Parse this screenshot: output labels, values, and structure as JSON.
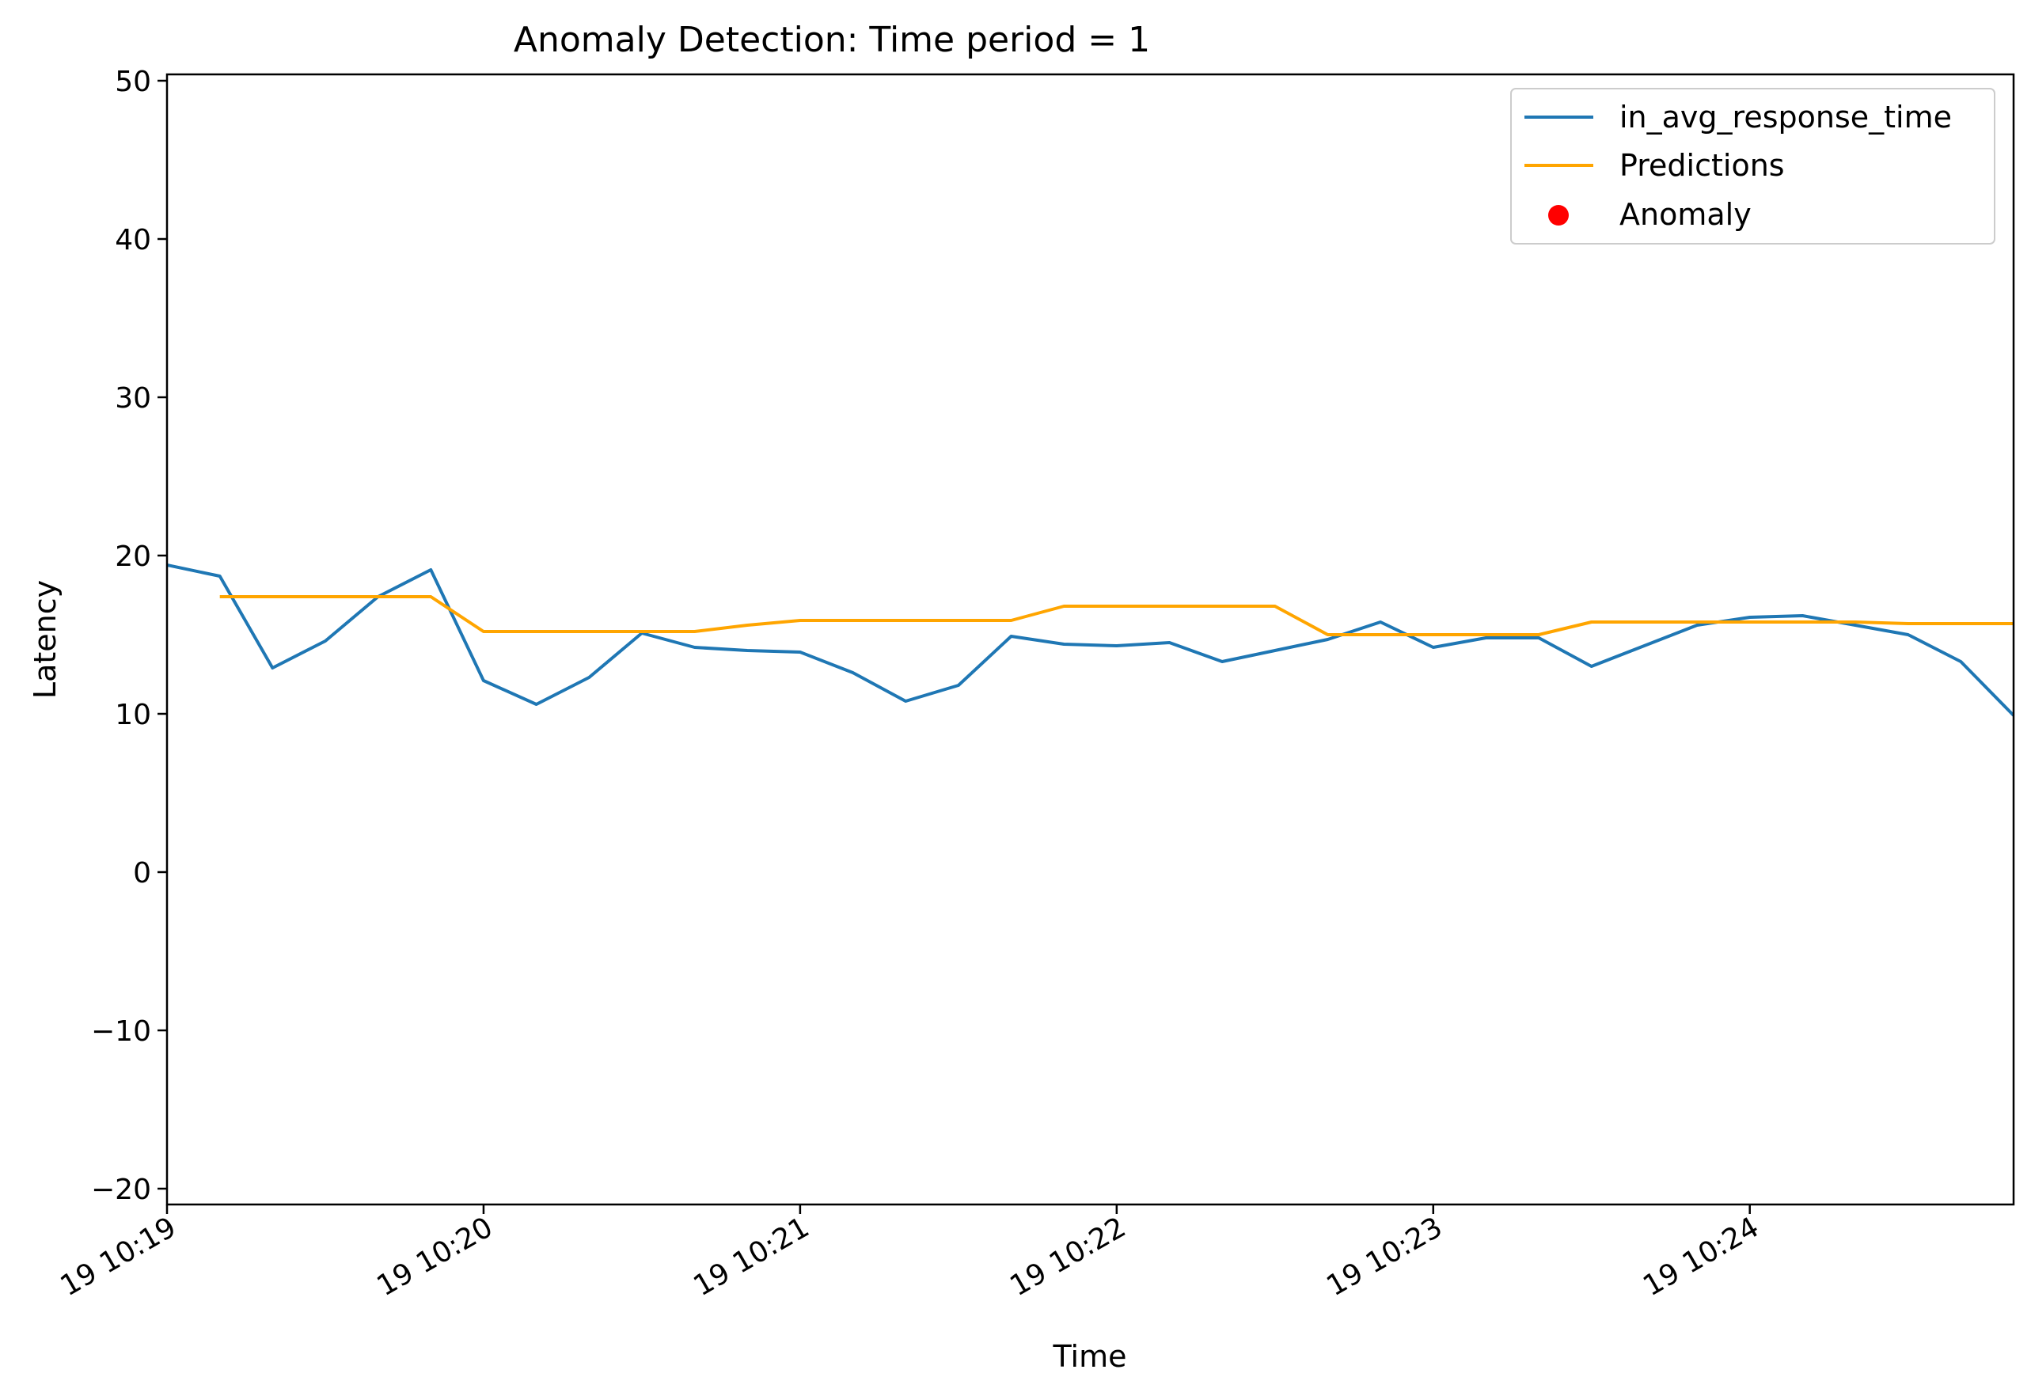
{
  "chart_data": {
    "type": "line",
    "title": "Anomaly Detection: Time period = 1",
    "xlabel": "Time",
    "ylabel": "Latency",
    "xlim": [
      "19 10:19:00",
      "19 10:24:50"
    ],
    "ylim": [
      -21,
      50.4
    ],
    "x_ticks": [
      {
        "t": "19 10:19:00",
        "label": "19 10:19"
      },
      {
        "t": "19 10:20:00",
        "label": "19 10:20"
      },
      {
        "t": "19 10:21:00",
        "label": "19 10:21"
      },
      {
        "t": "19 10:22:00",
        "label": "19 10:22"
      },
      {
        "t": "19 10:23:00",
        "label": "19 10:23"
      },
      {
        "t": "19 10:24:00",
        "label": "19 10:24"
      }
    ],
    "y_ticks": [
      {
        "v": -20,
        "label": "−20"
      },
      {
        "v": -10,
        "label": "−10"
      },
      {
        "v": 0,
        "label": "0"
      },
      {
        "v": 10,
        "label": "10"
      },
      {
        "v": 20,
        "label": "20"
      },
      {
        "v": 30,
        "label": "30"
      },
      {
        "v": 40,
        "label": "40"
      },
      {
        "v": 50,
        "label": "50"
      }
    ],
    "grid": false,
    "legend_position": "top-right",
    "series": [
      {
        "name": "in_avg_response_time",
        "color": "#1f77b4",
        "x": [
          "19 10:19:00",
          "19 10:19:10",
          "19 10:19:20",
          "19 10:19:30",
          "19 10:19:40",
          "19 10:19:50",
          "19 10:20:00",
          "19 10:20:10",
          "19 10:20:20",
          "19 10:20:30",
          "19 10:20:40",
          "19 10:20:50",
          "19 10:21:00",
          "19 10:21:10",
          "19 10:21:20",
          "19 10:21:30",
          "19 10:21:40",
          "19 10:21:50",
          "19 10:22:00",
          "19 10:22:10",
          "19 10:22:20",
          "19 10:22:30",
          "19 10:22:40",
          "19 10:22:50",
          "19 10:23:00",
          "19 10:23:10",
          "19 10:23:20",
          "19 10:23:30",
          "19 10:23:40",
          "19 10:23:50",
          "19 10:24:00",
          "19 10:24:10",
          "19 10:24:20",
          "19 10:24:30",
          "19 10:24:40",
          "19 10:24:50"
        ],
        "y": [
          19.4,
          18.7,
          12.9,
          14.6,
          17.4,
          19.1,
          12.1,
          10.6,
          12.3,
          15.1,
          14.2,
          14.0,
          13.9,
          12.6,
          10.8,
          11.8,
          14.9,
          14.4,
          14.3,
          14.5,
          13.3,
          14.0,
          14.7,
          15.8,
          14.2,
          14.8,
          14.8,
          13.0,
          14.3,
          15.6,
          16.1,
          16.2,
          15.6,
          15.0,
          13.3,
          9.9
        ]
      },
      {
        "name": "Predictions",
        "color": "#ffa500",
        "x": [
          "19 10:19:10",
          "19 10:19:20",
          "19 10:19:30",
          "19 10:19:40",
          "19 10:19:50",
          "19 10:20:00",
          "19 10:20:10",
          "19 10:20:20",
          "19 10:20:30",
          "19 10:20:40",
          "19 10:20:50",
          "19 10:21:00",
          "19 10:21:10",
          "19 10:21:20",
          "19 10:21:30",
          "19 10:21:40",
          "19 10:21:50",
          "19 10:22:00",
          "19 10:22:10",
          "19 10:22:20",
          "19 10:22:30",
          "19 10:22:40",
          "19 10:22:50",
          "19 10:23:00",
          "19 10:23:10",
          "19 10:23:20",
          "19 10:23:30",
          "19 10:23:40",
          "19 10:23:50",
          "19 10:24:00",
          "19 10:24:10",
          "19 10:24:20",
          "19 10:24:30",
          "19 10:24:40",
          "19 10:24:50"
        ],
        "y": [
          17.4,
          17.4,
          17.4,
          17.4,
          17.4,
          15.2,
          15.2,
          15.2,
          15.2,
          15.2,
          15.6,
          15.9,
          15.9,
          15.9,
          15.9,
          15.9,
          16.8,
          16.8,
          16.8,
          16.8,
          16.8,
          15.0,
          15.0,
          15.0,
          15.0,
          15.0,
          15.8,
          15.8,
          15.8,
          15.8,
          15.8,
          15.8,
          15.7,
          15.7,
          15.7
        ]
      },
      {
        "name": "Anomaly",
        "color": "#ff0000",
        "marker": "circle",
        "x": [],
        "y": []
      }
    ],
    "vertical_line": {
      "x": "19 10:19:00",
      "style": "dashed",
      "color": "#000000"
    }
  }
}
